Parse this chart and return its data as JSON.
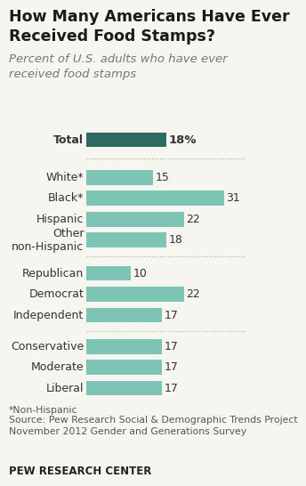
{
  "title": "How Many Americans Have Ever\nReceived Food Stamps?",
  "subtitle": "Percent of U.S. adults who have ever\nreceived food stamps",
  "categories": [
    "Total",
    "White*",
    "Black*",
    "Hispanic",
    "Other\nnon-Hispanic",
    "Republican",
    "Democrat",
    "Independent",
    "Conservative",
    "Moderate",
    "Liberal"
  ],
  "values": [
    18,
    15,
    31,
    22,
    18,
    10,
    22,
    17,
    17,
    17,
    17
  ],
  "bar_color_total": "#2d6b62",
  "bar_color_other": "#7dc4b4",
  "total_label": "18%",
  "footnote1": "*Non-Hispanic",
  "footnote2": "Source: Pew Research Social & Demographic Trends Project\nNovember 2012 Gender and Generations Survey",
  "footer": "PEW RESEARCH CENTER",
  "background_color": "#f7f5f0",
  "xlim": [
    0,
    36
  ],
  "title_fontsize": 12.5,
  "subtitle_fontsize": 9.5,
  "label_fontsize": 9,
  "value_fontsize": 9,
  "footnote_fontsize": 7.8,
  "footer_fontsize": 8.5
}
